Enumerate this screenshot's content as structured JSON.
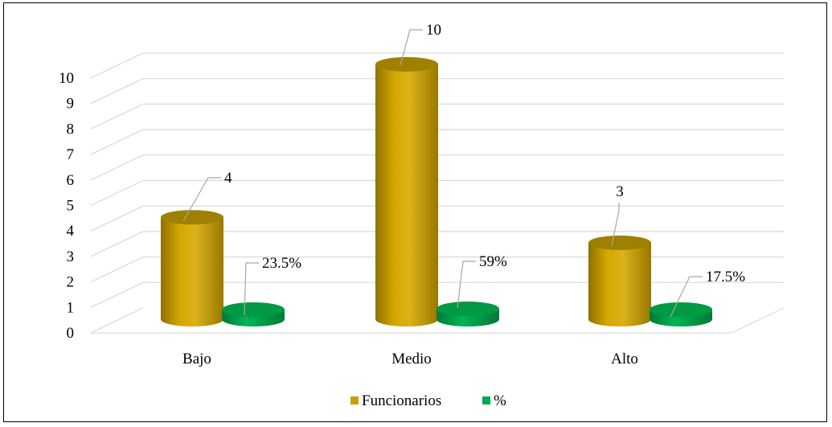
{
  "chart_data": {
    "type": "bar",
    "categories": [
      "Bajo",
      "Medio",
      "Alto"
    ],
    "series": [
      {
        "name": "Funcionarios",
        "values": [
          4,
          10,
          3
        ],
        "labels": [
          "4",
          "10",
          "3"
        ],
        "color": "#C9A000"
      },
      {
        "name": "%",
        "values": [
          0.235,
          0.59,
          0.175
        ],
        "labels": [
          "23.5%",
          "59%",
          "17.5%"
        ],
        "color": "#00A84F"
      }
    ],
    "ylim": [
      0,
      10
    ],
    "yticks": [
      "0",
      "1",
      "2",
      "3",
      "4",
      "5",
      "6",
      "7",
      "8",
      "9",
      "10"
    ],
    "grid": true,
    "style": "3d-cylinder",
    "legend": "bottom"
  }
}
